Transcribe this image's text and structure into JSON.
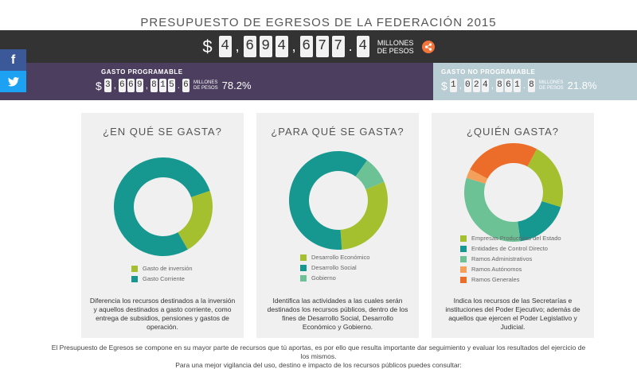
{
  "title": "PRESUPUESTO DE EGRESOS DE LA FEDERACIÓN 2015",
  "total": {
    "currency": "$",
    "digits": [
      "4",
      "6",
      "9",
      "4",
      "6",
      "7",
      "7",
      "4"
    ],
    "unit_line1": "MILLONES",
    "unit_line2": "DE PESOS"
  },
  "social": {
    "facebook": "f",
    "twitter": "t"
  },
  "gasto_programable": {
    "label": "GASTO PROGRAMABLE",
    "currency": "$",
    "digits": [
      "3",
      "6",
      "6",
      "9",
      "8",
      "1",
      "5",
      "6"
    ],
    "unit_line1": "MILLONES",
    "unit_line2": "DE PESOS",
    "percent": "78.2%"
  },
  "gasto_no_programable": {
    "label": "GASTO NO PROGRAMABLE",
    "currency": "$",
    "digits": [
      "1",
      "0",
      "2",
      "4",
      "8",
      "6",
      "1",
      "8"
    ],
    "unit_line1": "MILLONES",
    "unit_line2": "DE PESOS",
    "percent": "21.8%"
  },
  "colors": {
    "lime": "#a4c02f",
    "teal": "#169891",
    "mint": "#6dc295",
    "orange_light": "#f5a05a",
    "orange": "#ec6d2a"
  },
  "cards": [
    {
      "title": "¿EN QUÉ SE GASTA?",
      "legend": [
        "Gasto de inversión",
        "Gasto Corriente"
      ],
      "description": "Diferencia los recursos destinados a la inversión y aquellos destinados a gasto corriente, como entrega de subsidios, pensiones y gastos de operación."
    },
    {
      "title": "¿PARA QUÉ SE GASTA?",
      "legend": [
        "Desarrollo Económico",
        "Desarrollo Social",
        "Gobierno"
      ],
      "description": "Identifica las actividades a las cuales serán destinados los recursos públicos, dentro de los fines de Desarrollo Social, Desarrollo Económico y Gobierno."
    },
    {
      "title": "¿QUIÉN GASTA?",
      "legend": [
        "Empresas Productivas del Estado",
        "Entidades de Control Directo",
        "Ramos Administrativos",
        "Ramos Autónomos",
        "Ramos Generales"
      ],
      "description": "Indica los recursos de las Secretarías e instituciones del Poder Ejecutivo; además de aquellos que ejercen el Poder Legislativo y Judicial."
    }
  ],
  "chart_data": [
    {
      "type": "pie",
      "categories": [
        "Gasto de inversión",
        "Gasto Corriente"
      ],
      "values": [
        22,
        78
      ]
    },
    {
      "type": "pie",
      "categories": [
        "Desarrollo Económico",
        "Desarrollo Social",
        "Gobierno"
      ],
      "values": [
        30,
        61,
        9
      ]
    },
    {
      "type": "pie",
      "categories": [
        "Empresas Productivas del Estado",
        "Entidades de Control Directo",
        "Ramos Administrativos",
        "Ramos Autónomos",
        "Ramos Generales"
      ],
      "values": [
        22,
        18,
        32,
        3,
        25
      ]
    }
  ],
  "footer": {
    "line1": "El Presupuesto de Egresos se compone en su mayor parte de recursos que tú aportas, es por ello que resulta importante dar seguimiento y evaluar los resultados del ejercicio de los mismos.",
    "line2": "Para una mejor vigilancia del uso, destino e impacto de los recursos públicos puedes consultar:"
  }
}
